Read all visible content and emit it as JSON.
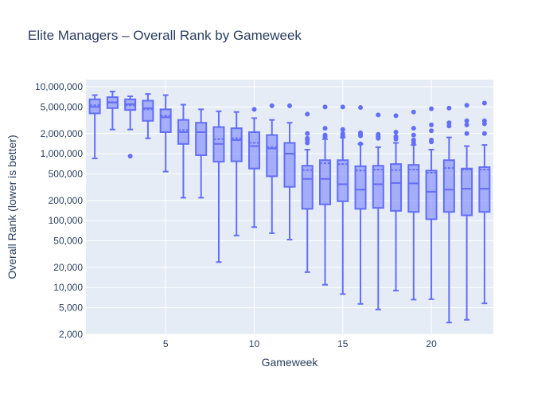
{
  "chart_data": {
    "type": "box",
    "title": "Elite Managers – Overall Rank by Gameweek",
    "xlabel": "Gameweek",
    "ylabel": "Overall Rank (lower is better)",
    "y_scale": "log",
    "ylim": [
      2000,
      12800000
    ],
    "xlim": [
      0.5,
      23.5
    ],
    "grid": true,
    "legend": "none",
    "colors": {
      "box": "#636efa",
      "plot_bg": "#e5ecf6",
      "grid": "#ffffff",
      "text": "#2a3f5f"
    },
    "x_ticks": [
      5,
      10,
      15,
      20
    ],
    "y_ticks": [
      {
        "value": 2000,
        "label": "2,000"
      },
      {
        "value": 5000,
        "label": "5,000"
      },
      {
        "value": 10000,
        "label": "10,000"
      },
      {
        "value": 20000,
        "label": "20,000"
      },
      {
        "value": 50000,
        "label": "50,000"
      },
      {
        "value": 100000,
        "label": "100,000"
      },
      {
        "value": 200000,
        "label": "200,000"
      },
      {
        "value": 500000,
        "label": "500,000"
      },
      {
        "value": 1000000,
        "label": "1,000,000"
      },
      {
        "value": 2000000,
        "label": "2,000,000"
      },
      {
        "value": 5000000,
        "label": "5,000,000"
      },
      {
        "value": 10000000,
        "label": "10,000,000"
      }
    ],
    "boxes": [
      {
        "gw": 1,
        "min": 850000,
        "q1": 4000000,
        "median": 5000000,
        "q3": 6500000,
        "max": 7500000,
        "mean": 5300000,
        "outliers": []
      },
      {
        "gw": 2,
        "min": 2300000,
        "q1": 4800000,
        "median": 5800000,
        "q3": 7000000,
        "max": 8500000,
        "mean": 5900000,
        "outliers": []
      },
      {
        "gw": 3,
        "min": 2300000,
        "q1": 4500000,
        "median": 5500000,
        "q3": 6500000,
        "max": 7200000,
        "mean": 5300000,
        "outliers": [
          920000
        ]
      },
      {
        "gw": 4,
        "min": 1700000,
        "q1": 3100000,
        "median": 4800000,
        "q3": 6200000,
        "max": 7800000,
        "mean": 4600000,
        "outliers": []
      },
      {
        "gw": 5,
        "min": 540000,
        "q1": 2100000,
        "median": 3500000,
        "q3": 4600000,
        "max": 7500000,
        "mean": 3700000,
        "outliers": []
      },
      {
        "gw": 6,
        "min": 220000,
        "q1": 1400000,
        "median": 2100000,
        "q3": 3200000,
        "max": 5400000,
        "mean": 2250000,
        "outliers": []
      },
      {
        "gw": 7,
        "min": 220000,
        "q1": 950000,
        "median": 2100000,
        "q3": 2900000,
        "max": 4600000,
        "mean": 2100000,
        "outliers": []
      },
      {
        "gw": 8,
        "min": 24000,
        "q1": 760000,
        "median": 1400000,
        "q3": 2500000,
        "max": 4300000,
        "mean": 1650000,
        "outliers": []
      },
      {
        "gw": 9,
        "min": 60000,
        "q1": 770000,
        "median": 1600000,
        "q3": 2400000,
        "max": 4200000,
        "mean": 1700000,
        "outliers": []
      },
      {
        "gw": 10,
        "min": 80000,
        "q1": 600000,
        "median": 1300000,
        "q3": 2100000,
        "max": 3400000,
        "mean": 1450000,
        "outliers": [
          4600000
        ]
      },
      {
        "gw": 11,
        "min": 65000,
        "q1": 460000,
        "median": 1200000,
        "q3": 1900000,
        "max": 3200000,
        "mean": 1250000,
        "outliers": [
          5200000
        ]
      },
      {
        "gw": 12,
        "min": 52000,
        "q1": 320000,
        "median": 1000000,
        "q3": 1450000,
        "max": 2900000,
        "mean": 1000000,
        "outliers": [
          5200000
        ]
      },
      {
        "gw": 13,
        "min": 17000,
        "q1": 150000,
        "median": 420000,
        "q3": 660000,
        "max": 1150000,
        "mean": 570000,
        "outliers": [
          3900000,
          2000000,
          1700000,
          1600000,
          1450000
        ]
      },
      {
        "gw": 14,
        "min": 11000,
        "q1": 175000,
        "median": 420000,
        "q3": 800000,
        "max": 1650000,
        "mean": 720000,
        "outliers": [
          5000000,
          2400000,
          1900000,
          1800000
        ]
      },
      {
        "gw": 15,
        "min": 8000,
        "q1": 195000,
        "median": 350000,
        "q3": 800000,
        "max": 1750000,
        "mean": 700000,
        "outliers": [
          5000000,
          2300000,
          2000000,
          1900000,
          1800000
        ]
      },
      {
        "gw": 16,
        "min": 5700,
        "q1": 150000,
        "median": 290000,
        "q3": 650000,
        "max": 1400000,
        "mean": 560000,
        "outliers": [
          4900000,
          2050000,
          1950000,
          1850000,
          1400000
        ]
      },
      {
        "gw": 17,
        "min": 4700,
        "q1": 155000,
        "median": 350000,
        "q3": 660000,
        "max": 1250000,
        "mean": 580000,
        "outliers": [
          3800000,
          1950000,
          1800000,
          1700000
        ]
      },
      {
        "gw": 18,
        "min": 9000,
        "q1": 140000,
        "median": 365000,
        "q3": 700000,
        "max": 1450000,
        "mean": 570000,
        "outliers": [
          3700000,
          2100000,
          1800000,
          1650000
        ]
      },
      {
        "gw": 19,
        "min": 6600,
        "q1": 135000,
        "median": 360000,
        "q3": 680000,
        "max": 1350000,
        "mean": 580000,
        "outliers": [
          4200000,
          2400000,
          1900000,
          1600000,
          1450000
        ]
      },
      {
        "gw": 20,
        "min": 6700,
        "q1": 105000,
        "median": 270000,
        "q3": 560000,
        "max": 1150000,
        "mean": 520000,
        "outliers": [
          4700000,
          2700000,
          2200000,
          1600000,
          1500000
        ]
      },
      {
        "gw": 21,
        "min": 3000,
        "q1": 135000,
        "median": 290000,
        "q3": 800000,
        "max": 1750000,
        "mean": 610000,
        "outliers": [
          4800000,
          2900000,
          2600000
        ]
      },
      {
        "gw": 22,
        "min": 3300,
        "q1": 120000,
        "median": 300000,
        "q3": 600000,
        "max": 1300000,
        "mean": 580000,
        "outliers": [
          5300000,
          3100000,
          2700000,
          2000000
        ]
      },
      {
        "gw": 23,
        "min": 5800,
        "q1": 135000,
        "median": 300000,
        "q3": 630000,
        "max": 1350000,
        "mean": 580000,
        "outliers": [
          5700000,
          3100000,
          2800000,
          2000000
        ]
      }
    ]
  }
}
